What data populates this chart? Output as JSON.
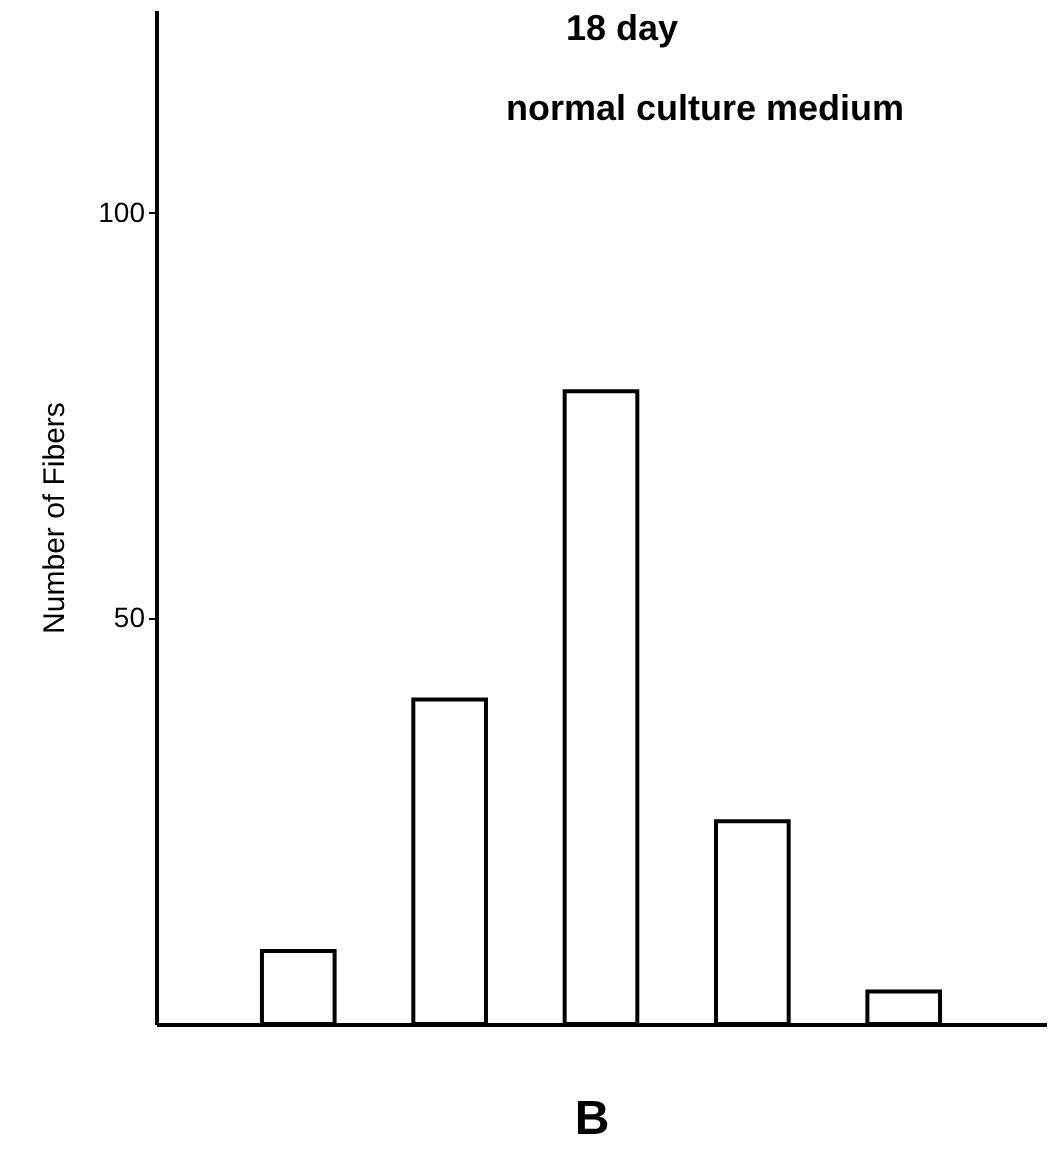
{
  "chart_data": {
    "type": "bar",
    "title": "18 day",
    "subtitle": "normal culture medium",
    "ylabel": "Number of Fibers",
    "annotations": [
      "B"
    ],
    "categories": [
      null,
      null,
      null,
      null,
      null
    ],
    "values": [
      9,
      40,
      78,
      25,
      4
    ],
    "color": "#ffffff",
    "ylim": [
      0,
      125
    ],
    "yticks": [
      50,
      100
    ],
    "grid": false,
    "tick_labels": "y"
  }
}
